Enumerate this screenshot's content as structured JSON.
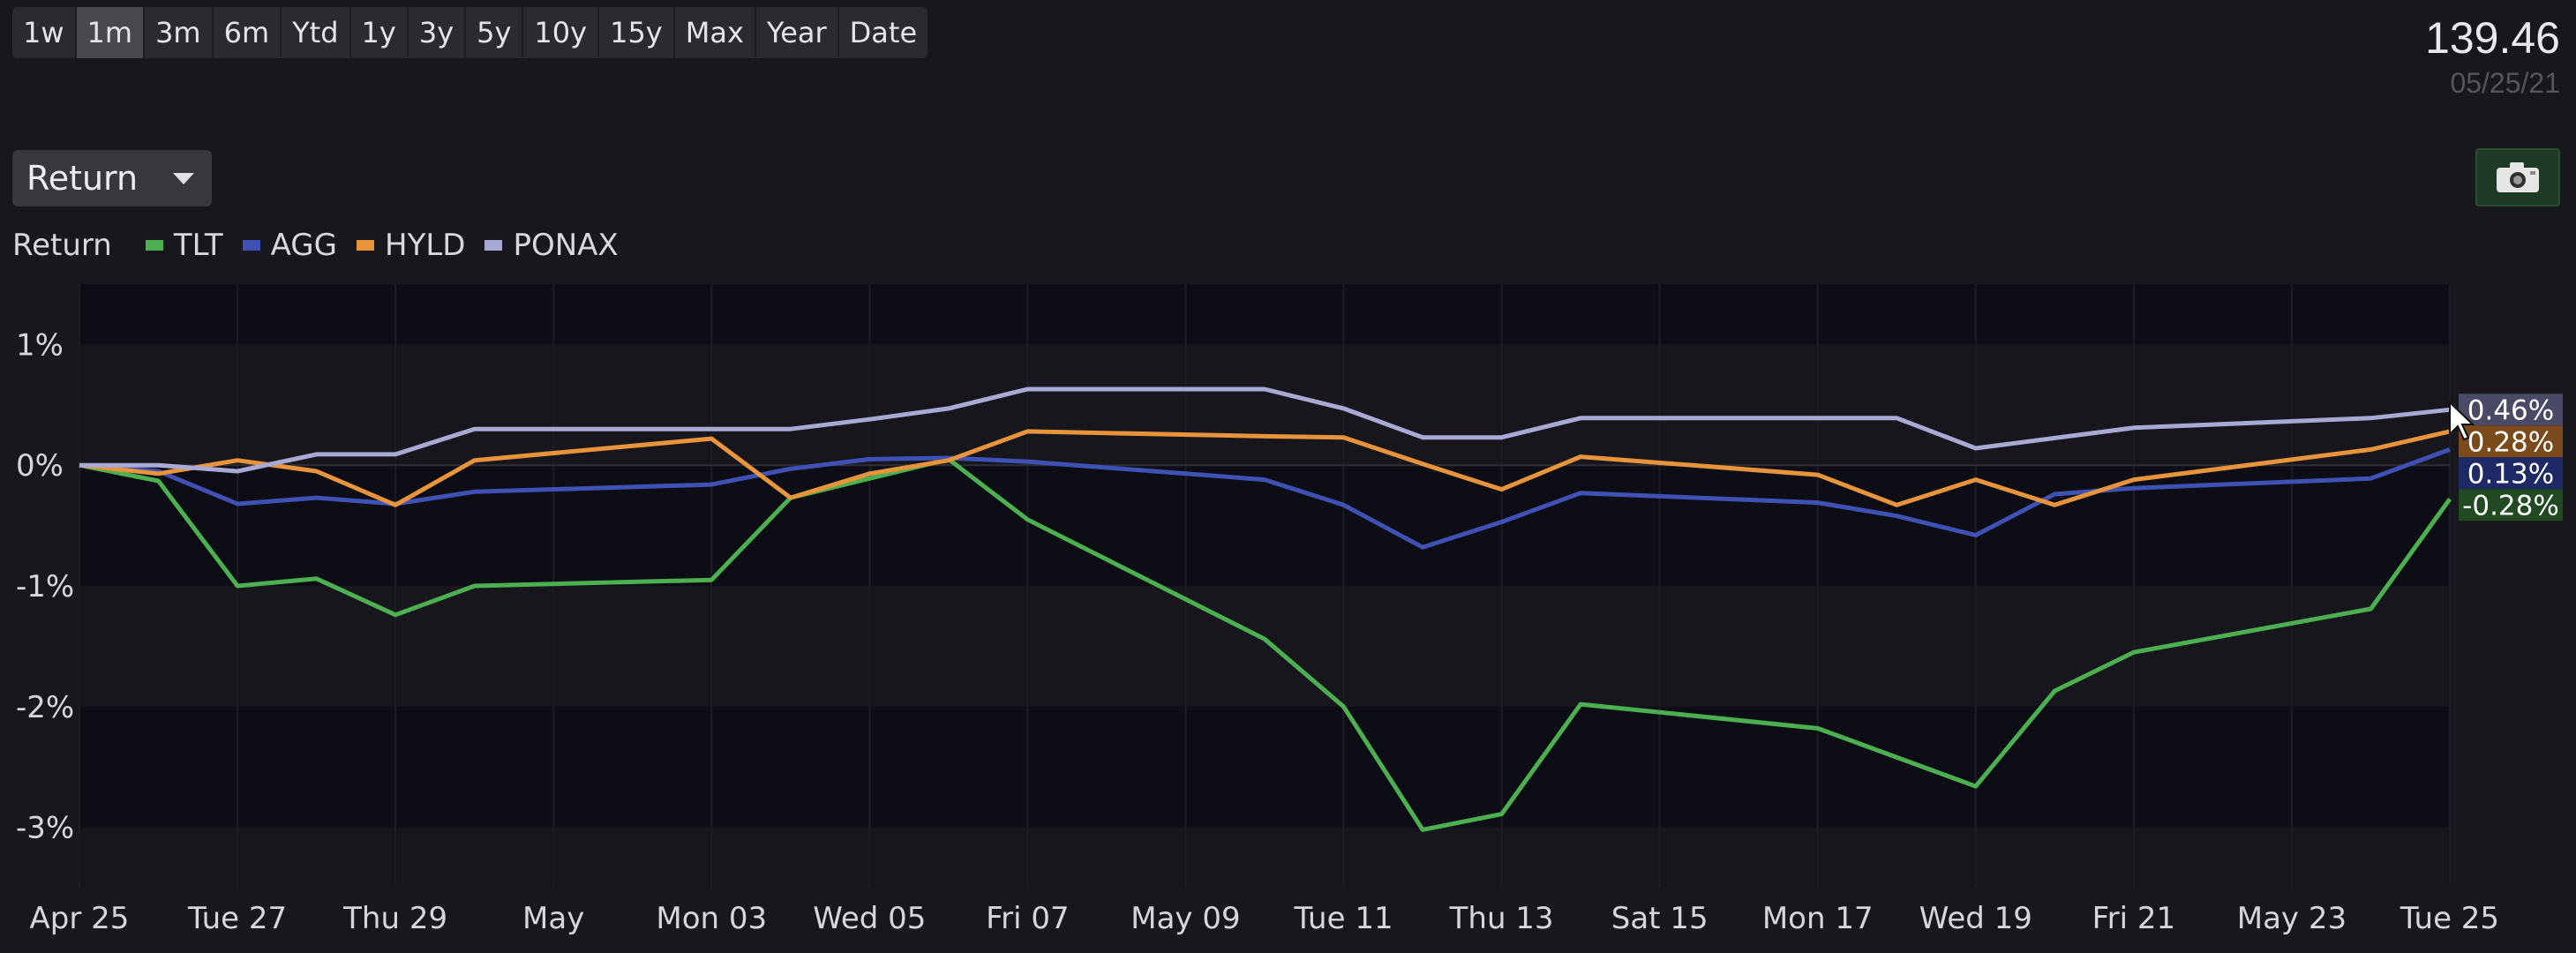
{
  "ranges": [
    {
      "label": "1w",
      "active": false
    },
    {
      "label": "1m",
      "active": true
    },
    {
      "label": "3m",
      "active": false
    },
    {
      "label": "6m",
      "active": false
    },
    {
      "label": "Ytd",
      "active": false
    },
    {
      "label": "1y",
      "active": false
    },
    {
      "label": "3y",
      "active": false
    },
    {
      "label": "5y",
      "active": false
    },
    {
      "label": "10y",
      "active": false
    },
    {
      "label": "15y",
      "active": false
    },
    {
      "label": "Max",
      "active": false
    },
    {
      "label": "Year",
      "active": false
    },
    {
      "label": "Date",
      "active": false
    }
  ],
  "price": {
    "value": "139.46",
    "date": "05/25/21"
  },
  "metric_select": {
    "value": "Return"
  },
  "camera": {
    "icon": "camera-icon"
  },
  "chart_data": {
    "type": "line",
    "legend_title": "Return",
    "legend_position": "top-left",
    "x": [
      "Apr 25",
      "Apr 26",
      "Apr 27",
      "Apr 28",
      "Apr 29",
      "Apr 30",
      "May 01",
      "May 02",
      "May 03",
      "May 04",
      "May 05",
      "May 06",
      "May 07",
      "May 08",
      "May 09",
      "May 10",
      "May 11",
      "May 12",
      "May 13",
      "May 14",
      "May 15",
      "May 16",
      "May 17",
      "May 18",
      "May 19",
      "May 20",
      "May 21",
      "May 22",
      "May 23",
      "May 24",
      "May 25"
    ],
    "x_tick_labels": [
      "Apr 25",
      "Tue 27",
      "Thu 29",
      "May",
      "Mon 03",
      "Wed 05",
      "Fri 07",
      "May 09",
      "Tue 11",
      "Thu 13",
      "Sat 15",
      "Mon 17",
      "Wed 19",
      "Fri 21",
      "May 23",
      "Tue 25"
    ],
    "x_tick_index": [
      0,
      2,
      4,
      6,
      8,
      10,
      12,
      14,
      16,
      18,
      20,
      22,
      24,
      26,
      28,
      30
    ],
    "y_ticks": [
      1,
      0,
      -1,
      -2,
      -3
    ],
    "y_tick_labels": [
      "1%",
      "0%",
      "-1%",
      "-2%",
      "-3%"
    ],
    "ylim": [
      -3.5,
      1.5
    ],
    "grid": "horizontal bands",
    "series": [
      {
        "name": "TLT",
        "color": "#4caf50",
        "end_label": "-0.28%",
        "end_label_bg": "#214a22",
        "points": [
          [
            0,
            0
          ],
          [
            1,
            -0.13
          ],
          [
            2,
            -1.0
          ],
          [
            3,
            -0.94
          ],
          [
            4,
            -1.24
          ],
          [
            5,
            -1.0
          ],
          [
            8,
            -0.95
          ],
          [
            9,
            -0.27
          ],
          [
            11,
            0.05
          ],
          [
            12,
            -0.45
          ],
          [
            15,
            -1.44
          ],
          [
            16,
            -2.0
          ],
          [
            17,
            -3.02
          ],
          [
            18,
            -2.89
          ],
          [
            19,
            -1.98
          ],
          [
            22,
            -2.18
          ],
          [
            24,
            -2.66
          ],
          [
            25,
            -1.87
          ],
          [
            26,
            -1.55
          ],
          [
            29,
            -1.19
          ],
          [
            30,
            -0.28
          ]
        ]
      },
      {
        "name": "AGG",
        "color": "#3f51b5",
        "end_label": "0.13%",
        "end_label_bg": "#1e2a66",
        "points": [
          [
            0,
            0
          ],
          [
            1,
            -0.05
          ],
          [
            2,
            -0.32
          ],
          [
            3,
            -0.27
          ],
          [
            4,
            -0.32
          ],
          [
            5,
            -0.22
          ],
          [
            8,
            -0.16
          ],
          [
            9,
            -0.03
          ],
          [
            10,
            0.05
          ],
          [
            11,
            0.06
          ],
          [
            12,
            0.03
          ],
          [
            15,
            -0.12
          ],
          [
            16,
            -0.33
          ],
          [
            17,
            -0.68
          ],
          [
            18,
            -0.47
          ],
          [
            19,
            -0.23
          ],
          [
            22,
            -0.31
          ],
          [
            23,
            -0.42
          ],
          [
            24,
            -0.58
          ],
          [
            25,
            -0.24
          ],
          [
            26,
            -0.19
          ],
          [
            29,
            -0.11
          ],
          [
            30,
            0.13
          ]
        ]
      },
      {
        "name": "HYLD",
        "color": "#e8943a",
        "end_label": "0.28%",
        "end_label_bg": "#7a4a1a",
        "points": [
          [
            0,
            0
          ],
          [
            1,
            -0.07
          ],
          [
            2,
            0.04
          ],
          [
            3,
            -0.05
          ],
          [
            4,
            -0.33
          ],
          [
            5,
            0.04
          ],
          [
            8,
            0.22
          ],
          [
            9,
            -0.27
          ],
          [
            10,
            -0.07
          ],
          [
            11,
            0.04
          ],
          [
            12,
            0.28
          ],
          [
            15,
            0.24
          ],
          [
            16,
            0.23
          ],
          [
            17,
            0.01
          ],
          [
            18,
            -0.2
          ],
          [
            19,
            0.07
          ],
          [
            22,
            -0.08
          ],
          [
            23,
            -0.33
          ],
          [
            24,
            -0.12
          ],
          [
            25,
            -0.33
          ],
          [
            26,
            -0.12
          ],
          [
            29,
            0.13
          ],
          [
            30,
            0.28
          ]
        ]
      },
      {
        "name": "PONAX",
        "color": "#a9a9d6",
        "end_label": "0.46%",
        "end_label_bg": "#4a4a66",
        "points": [
          [
            0,
            0
          ],
          [
            1,
            0
          ],
          [
            2,
            -0.05
          ],
          [
            3,
            0.09
          ],
          [
            4,
            0.09
          ],
          [
            5,
            0.3
          ],
          [
            9,
            0.3
          ],
          [
            10,
            0.38
          ],
          [
            11,
            0.47
          ],
          [
            12,
            0.63
          ],
          [
            15,
            0.63
          ],
          [
            16,
            0.47
          ],
          [
            17,
            0.23
          ],
          [
            18,
            0.23
          ],
          [
            19,
            0.39
          ],
          [
            23,
            0.39
          ],
          [
            24,
            0.14
          ],
          [
            26,
            0.31
          ],
          [
            29,
            0.39
          ],
          [
            30,
            0.46
          ]
        ]
      }
    ]
  }
}
